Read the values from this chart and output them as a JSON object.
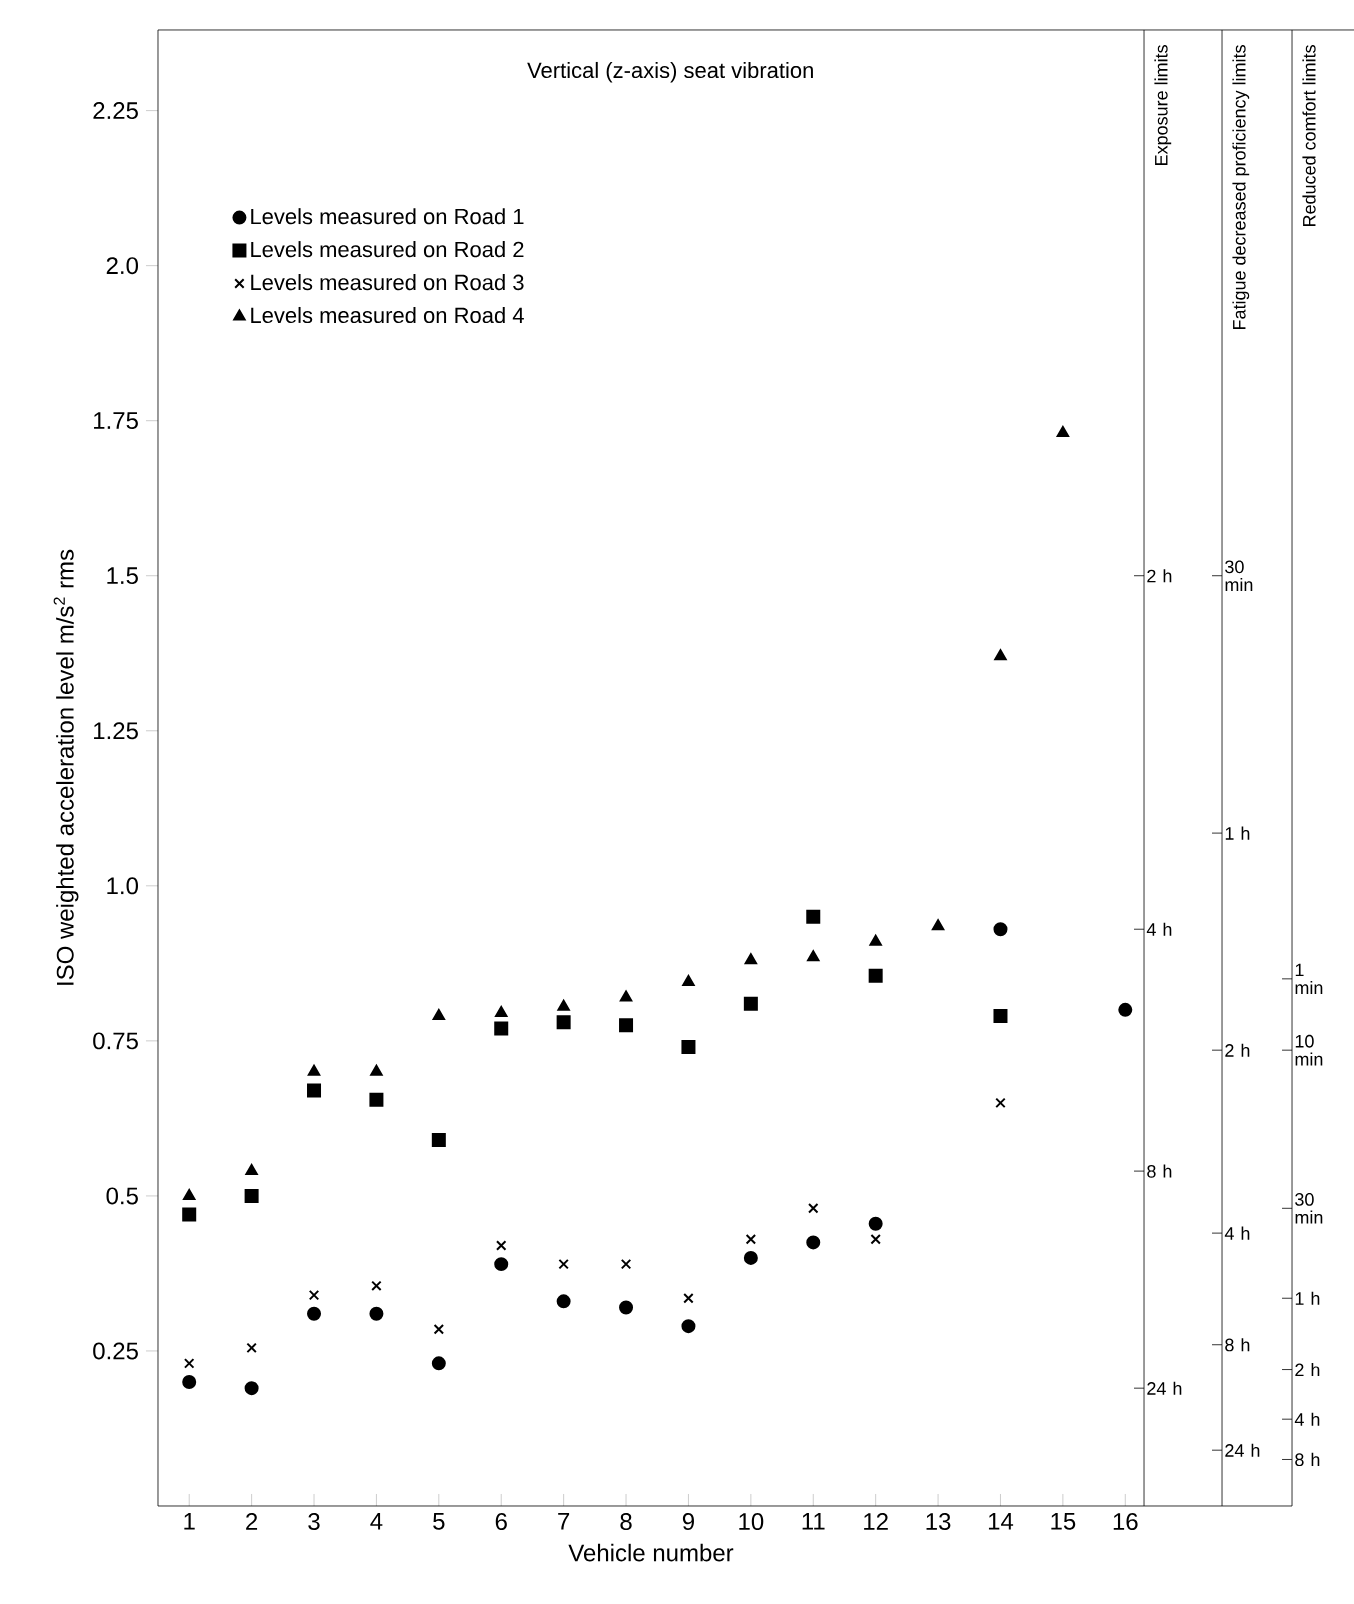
{
  "chart_data": {
    "type": "scatter",
    "title": "Vertical (z-axis) seat vibration",
    "xlabel": "Vehicle number",
    "ylabel": "ISO weighted acceleration level m/s$^{2}$ rms",
    "x": [
      1,
      2,
      3,
      4,
      5,
      6,
      7,
      8,
      9,
      10,
      11,
      12,
      13,
      14,
      15,
      16
    ],
    "series": [
      {
        "name": "Levels measured on Road 1",
        "color": "#000000",
        "marker": "circle",
        "values": [
          0.2,
          0.19,
          0.31,
          0.31,
          0.23,
          0.39,
          0.33,
          0.32,
          0.29,
          0.4,
          0.425,
          0.455,
          null,
          0.93,
          null,
          0.8
        ]
      },
      {
        "name": "Levels measured on Road 2",
        "color": "#000000",
        "marker": "square",
        "values": [
          0.47,
          0.5,
          0.67,
          0.655,
          0.59,
          0.77,
          0.78,
          0.775,
          0.74,
          0.81,
          0.95,
          0.855,
          null,
          0.79,
          null,
          null
        ]
      },
      {
        "name": "Levels measured on Road 3",
        "color": "#000000",
        "marker": "cross",
        "values": [
          0.23,
          0.255,
          0.34,
          0.355,
          0.285,
          0.42,
          0.39,
          0.39,
          0.335,
          0.43,
          0.48,
          0.43,
          null,
          0.65,
          null,
          null
        ]
      },
      {
        "name": "Levels measured on Road 4",
        "color": "#000000",
        "marker": "triangle",
        "values": [
          0.5,
          0.54,
          0.7,
          0.7,
          0.79,
          0.795,
          0.805,
          0.82,
          0.845,
          0.88,
          0.885,
          0.91,
          0.935,
          1.37,
          1.73,
          null
        ]
      }
    ],
    "xlim": [
      0.5,
      16.3
    ],
    "xticks": [
      1,
      2,
      3,
      4,
      5,
      6,
      7,
      8,
      9,
      10,
      11,
      12,
      13,
      14,
      15,
      16
    ],
    "ylim": [
      0,
      2.38
    ],
    "yticks": [
      0.25,
      0.5,
      0.75,
      {
        "value": 1,
        "label": "1.0"
      },
      1.25,
      1.5,
      1.75,
      {
        "value": 2,
        "label": "2.0"
      },
      2.25
    ],
    "annotations": [
      "Exposure limits",
      "Fatigue decreased proficiency limits",
      "Reduced comfort limits"
    ],
    "ref_lines": [
      {
        "axis": "y",
        "value": 1.5,
        "label": "2 h"
      },
      {
        "axis": "y",
        "value": 0.93,
        "label": "4 h"
      },
      {
        "axis": "y",
        "value": 0.54,
        "label": "8 h"
      },
      {
        "axis": "y",
        "value": 0.19,
        "label": "24 h"
      },
      {
        "axis": "y",
        "value": 1.5,
        "label": "30 min"
      },
      {
        "axis": "y",
        "value": 1.085,
        "label": "1 h"
      },
      {
        "axis": "y",
        "value": 0.735,
        "label": "2 h"
      },
      {
        "axis": "y",
        "value": 0.44,
        "label": "4 h"
      },
      {
        "axis": "y",
        "value": 0.26,
        "label": "8 h"
      },
      {
        "axis": "y",
        "value": 0.09,
        "label": "24 h"
      },
      {
        "axis": "y",
        "value": 0.85,
        "label": "1 min"
      },
      {
        "axis": "y",
        "value": 0.735,
        "label": "10 min"
      },
      {
        "axis": "y",
        "value": 0.48,
        "label": "30 min"
      },
      {
        "axis": "y",
        "value": 0.335,
        "label": "1 h"
      },
      {
        "axis": "y",
        "value": 0.22,
        "label": "2 h"
      },
      {
        "axis": "y",
        "value": 0.14,
        "label": "4 h"
      },
      {
        "axis": "y",
        "value": 0.075,
        "label": "8 h"
      }
    ],
    "legend": "top left"
  }
}
